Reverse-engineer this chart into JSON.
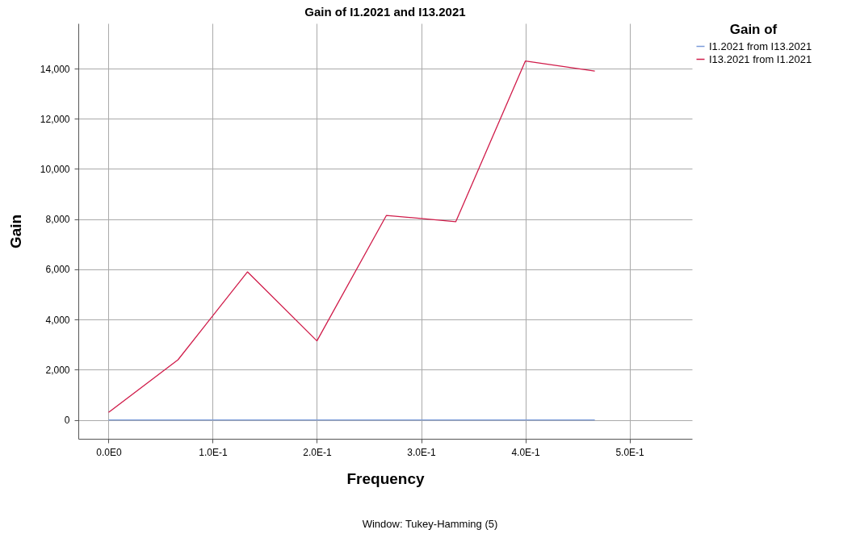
{
  "chart_data": {
    "type": "line",
    "title": "Gain of I1.2021 and I13.2021",
    "xlabel": "Frequency",
    "ylabel": "Gain",
    "legend_title": "Gain of",
    "x": [
      0,
      0.0667,
      0.1333,
      0.2,
      0.2667,
      0.3333,
      0.4,
      0.4667
    ],
    "series": [
      {
        "name": "I1.2021 from I13.2021",
        "color": "#7b9bd9",
        "values": [
          0,
          0,
          0,
          0,
          0,
          0,
          0,
          0
        ]
      },
      {
        "name": "I13.2021 from I1.2021",
        "color": "#d01c4a",
        "values": [
          300,
          2400,
          5900,
          3150,
          8150,
          7900,
          14300,
          13900
        ]
      }
    ],
    "xlim": [
      -0.029,
      0.56
    ],
    "ylim": [
      -750,
      15800
    ],
    "xticks": [
      {
        "value": 0,
        "label": "0.0E0"
      },
      {
        "value": 0.1,
        "label": "1.0E-1"
      },
      {
        "value": 0.2,
        "label": "2.0E-1"
      },
      {
        "value": 0.3,
        "label": "3.0E-1"
      },
      {
        "value": 0.4,
        "label": "4.0E-1"
      },
      {
        "value": 0.5,
        "label": "5.0E-1"
      }
    ],
    "yticks": [
      0,
      {
        "value": 2000,
        "label": "2,000"
      },
      {
        "value": 4000,
        "label": "4,000"
      },
      {
        "value": 6000,
        "label": "6,000"
      },
      {
        "value": 8000,
        "label": "8,000"
      },
      {
        "value": 10000,
        "label": "10,000"
      },
      {
        "value": 12000,
        "label": "12,000"
      },
      {
        "value": 14000,
        "label": "14,000"
      }
    ],
    "grid": true,
    "legend": "top right",
    "marker": "none",
    "line_style": "solid",
    "annotations": [
      "Window: Tukey-Hamming (5)"
    ]
  }
}
